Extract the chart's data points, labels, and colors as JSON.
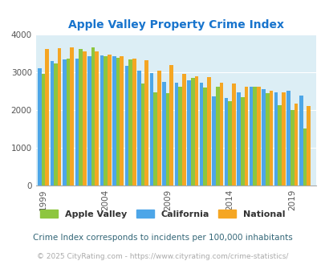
{
  "title": "Apple Valley Property Crime Index",
  "years": [
    1999,
    2000,
    2001,
    2002,
    2003,
    2004,
    2005,
    2006,
    2007,
    2008,
    2009,
    2010,
    2011,
    2012,
    2013,
    2014,
    2015,
    2016,
    2017,
    2018,
    2019,
    2020
  ],
  "apple_valley": [
    2950,
    3230,
    3350,
    3610,
    3650,
    3420,
    3380,
    3330,
    2700,
    2470,
    2450,
    2620,
    2840,
    2600,
    2620,
    2240,
    2340,
    2610,
    2440,
    2130,
    2000,
    1510
  ],
  "california": [
    3100,
    3290,
    3340,
    3360,
    3430,
    3450,
    3420,
    3160,
    3040,
    2970,
    2740,
    2730,
    2780,
    2720,
    2370,
    2320,
    2470,
    2620,
    2550,
    2470,
    2510,
    2380
  ],
  "national": [
    3620,
    3640,
    3660,
    3560,
    3560,
    3460,
    3420,
    3370,
    3320,
    3040,
    3200,
    2950,
    2900,
    2880,
    2730,
    2710,
    2620,
    2610,
    2510,
    2470,
    2170,
    2100
  ],
  "bar_colors": {
    "apple_valley": "#8dc63f",
    "california": "#4da6e8",
    "national": "#f5a623"
  },
  "ylim": [
    0,
    4000
  ],
  "yticks": [
    0,
    1000,
    2000,
    3000,
    4000
  ],
  "xtick_labels": [
    "1999",
    "2004",
    "2009",
    "2014",
    "2019"
  ],
  "xtick_positions": [
    1999,
    2004,
    2009,
    2014,
    2019
  ],
  "legend_labels": [
    "Apple Valley",
    "California",
    "National"
  ],
  "subtitle": "Crime Index corresponds to incidents per 100,000 inhabitants",
  "footer": "© 2025 CityRating.com - https://www.cityrating.com/crime-statistics/",
  "bg_color": "#dceef5",
  "title_color": "#1874cd",
  "subtitle_color": "#336677",
  "footer_color": "#aaaaaa",
  "bar_width": 0.3
}
